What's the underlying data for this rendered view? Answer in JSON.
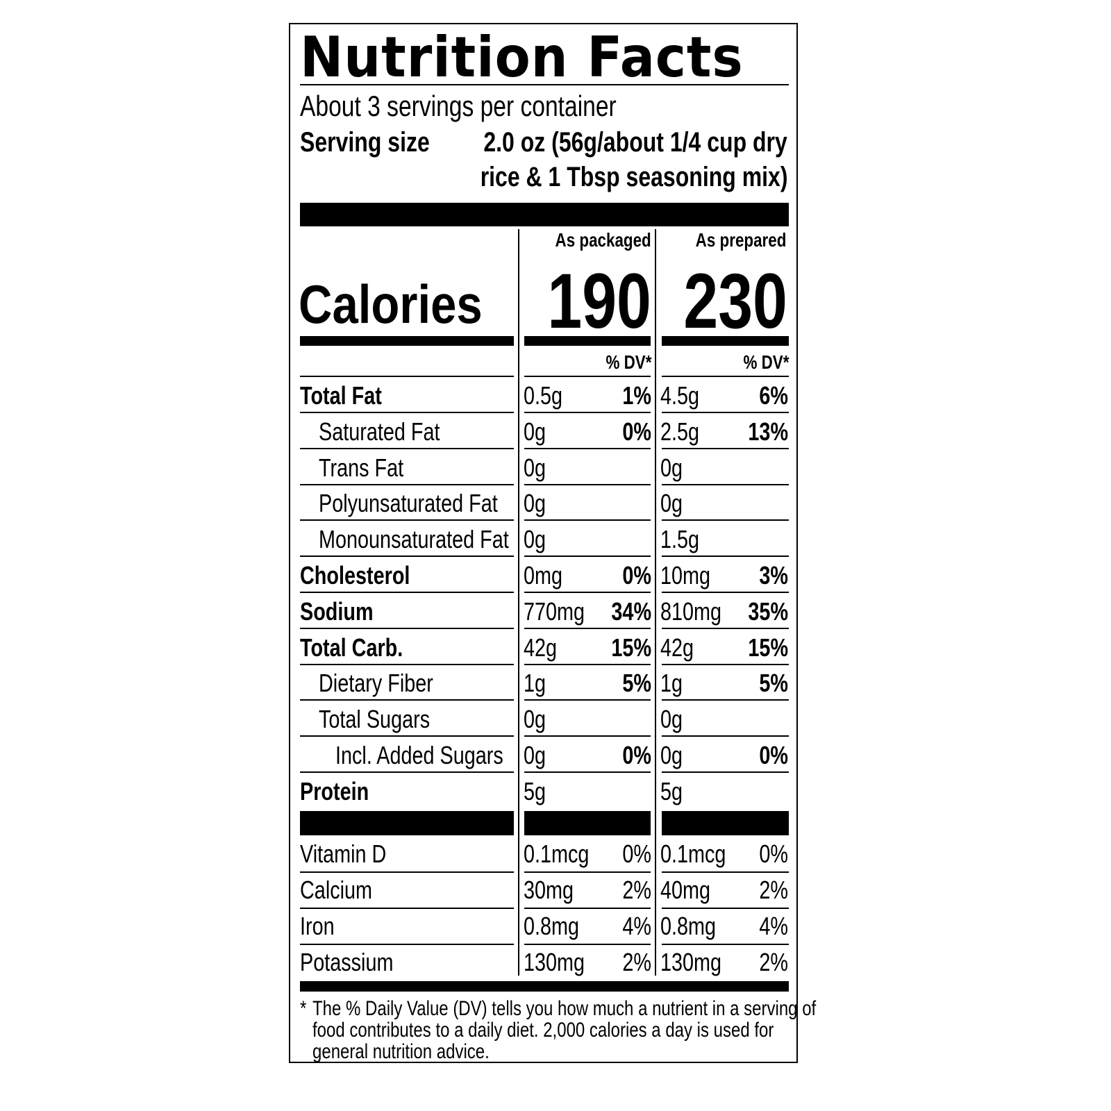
{
  "title": "Nutrition Facts",
  "servings": "About 3 servings per container",
  "serving_size_label": "Serving size",
  "serving_size_line1": "2.0 oz (56g/about 1/4 cup dry",
  "serving_size_line2": "rice & 1 Tbsp seasoning mix)",
  "columns": [
    "As packaged",
    "As prepared"
  ],
  "calories_label": "Calories",
  "calories": [
    "190",
    "230"
  ],
  "dv_header": "% DV*",
  "nutrients": [
    {
      "name": "Total Fat",
      "level": 0,
      "bold": true,
      "packaged": "0.5g",
      "packaged_dv": "1%",
      "prepared": "4.5g",
      "prepared_dv": "6%"
    },
    {
      "name": "Saturated Fat",
      "level": 1,
      "bold": false,
      "packaged": "0g",
      "packaged_dv": "0%",
      "prepared": "2.5g",
      "prepared_dv": "13%"
    },
    {
      "name": "Trans Fat",
      "level": 1,
      "bold": false,
      "packaged": "0g",
      "packaged_dv": "",
      "prepared": "0g",
      "prepared_dv": ""
    },
    {
      "name": "Polyunsaturated Fat",
      "level": 1,
      "bold": false,
      "packaged": "0g",
      "packaged_dv": "",
      "prepared": "0g",
      "prepared_dv": ""
    },
    {
      "name": "Monounsaturated Fat",
      "level": 1,
      "bold": false,
      "packaged": "0g",
      "packaged_dv": "",
      "prepared": "1.5g",
      "prepared_dv": ""
    },
    {
      "name": "Cholesterol",
      "level": 0,
      "bold": true,
      "packaged": "0mg",
      "packaged_dv": "0%",
      "prepared": "10mg",
      "prepared_dv": "3%"
    },
    {
      "name": "Sodium",
      "level": 0,
      "bold": true,
      "packaged": "770mg",
      "packaged_dv": "34%",
      "prepared": "810mg",
      "prepared_dv": "35%"
    },
    {
      "name": "Total Carb.",
      "level": 0,
      "bold": true,
      "packaged": "42g",
      "packaged_dv": "15%",
      "prepared": "42g",
      "prepared_dv": "15%"
    },
    {
      "name": "Dietary Fiber",
      "level": 1,
      "bold": false,
      "packaged": "1g",
      "packaged_dv": "5%",
      "prepared": "1g",
      "prepared_dv": "5%"
    },
    {
      "name": "Total Sugars",
      "level": 1,
      "bold": false,
      "packaged": "0g",
      "packaged_dv": "",
      "prepared": "0g",
      "prepared_dv": ""
    },
    {
      "name": "Incl. Added Sugars",
      "level": 2,
      "bold": false,
      "packaged": "0g",
      "packaged_dv": "0%",
      "prepared": "0g",
      "prepared_dv": "0%"
    },
    {
      "name": "Protein",
      "level": 0,
      "bold": true,
      "packaged": "5g",
      "packaged_dv": "",
      "prepared": "5g",
      "prepared_dv": ""
    }
  ],
  "vitamins": [
    {
      "name": "Vitamin D",
      "packaged": "0.1mcg",
      "packaged_dv": "0%",
      "prepared": "0.1mcg",
      "prepared_dv": "0%"
    },
    {
      "name": "Calcium",
      "packaged": "30mg",
      "packaged_dv": "2%",
      "prepared": "40mg",
      "prepared_dv": "2%"
    },
    {
      "name": "Iron",
      "packaged": "0.8mg",
      "packaged_dv": "4%",
      "prepared": "0.8mg",
      "prepared_dv": "4%"
    },
    {
      "name": "Potassium",
      "packaged": "130mg",
      "packaged_dv": "2%",
      "prepared": "130mg",
      "prepared_dv": "2%"
    }
  ],
  "footnote_star": "*",
  "footnote_lines": [
    "The % Daily Value (DV) tells you how much a nutrient in a serving of",
    "food contributes to a daily diet. 2,000 calories a day is used for",
    "general nutrition advice."
  ]
}
